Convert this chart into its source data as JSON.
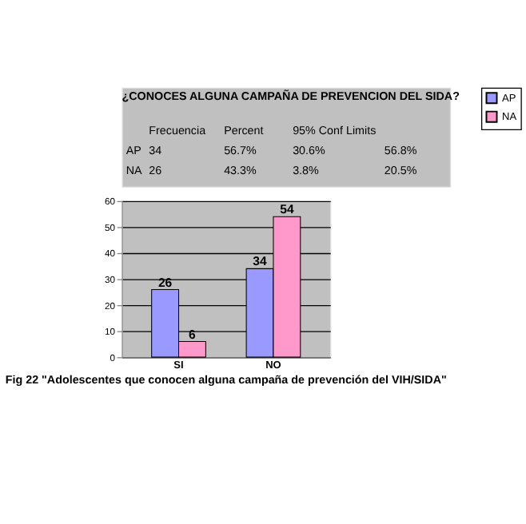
{
  "chart_data": [
    {
      "type": "other",
      "title": "¿CONOCES ALGUNA CAMPAÑA DE PREVENCION DEL SIDA?",
      "annotations": [
        "Frecuencia",
        "Percent",
        "95% Conf Limits",
        "AP",
        "34",
        "56.7%",
        "30.6%",
        "56.8%",
        "NA",
        "26",
        "43.3%",
        "3.8%",
        "20.5%"
      ]
    },
    {
      "type": "bar",
      "title": "Fig 22 \"Adolescentes que conocen alguna campaña de prevención del VIH/SIDA\"",
      "categories": [
        "SI",
        "NO"
      ],
      "series": [
        {
          "name": "AP",
          "color": "#9999ff",
          "values": [
            26,
            34
          ]
        },
        {
          "name": "NA",
          "color": "#ff99cc",
          "values": [
            6,
            54
          ]
        }
      ],
      "ylim": [
        0,
        60
      ],
      "yticks": [
        0,
        10,
        20,
        30,
        40,
        50,
        60
      ],
      "grid": "y",
      "legend": "right",
      "data_labels": true
    }
  ]
}
